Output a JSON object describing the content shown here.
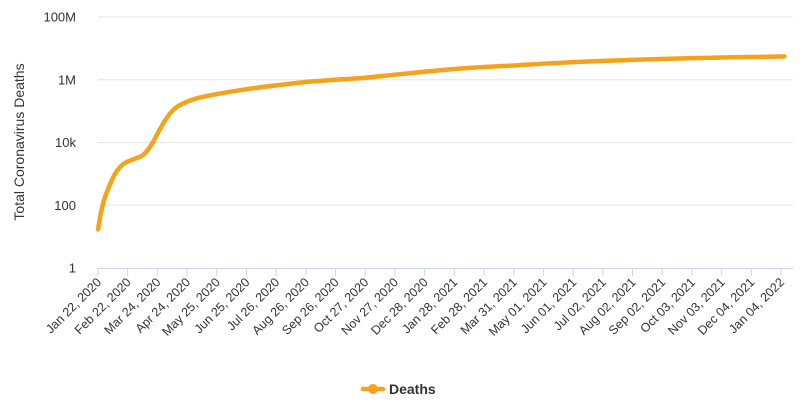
{
  "chart_data": {
    "type": "line",
    "ylabel": "Total Coronavirus Deaths",
    "yscale": "log",
    "ylim": [
      1,
      100000000
    ],
    "y_ticks": [
      {
        "value": 1,
        "label": "1"
      },
      {
        "value": 100,
        "label": "100"
      },
      {
        "value": 10000,
        "label": "10k"
      },
      {
        "value": 1000000,
        "label": "1M"
      },
      {
        "value": 100000000,
        "label": "100M"
      }
    ],
    "x_tick_labels": [
      "Jan 22, 2020",
      "Feb 22, 2020",
      "Mar 24, 2020",
      "Apr 24, 2020",
      "May 25, 2020",
      "Jun 25, 2020",
      "Jul 26, 2020",
      "Aug 26, 2020",
      "Sep 26, 2020",
      "Oct 27, 2020",
      "Nov 27, 2020",
      "Dec 28, 2020",
      "Jan 28, 2021",
      "Feb 28, 2021",
      "Mar 31, 2021",
      "May 01, 2021",
      "Jun 01, 2021",
      "Jul 02, 2021",
      "Aug 02, 2021",
      "Sep 02, 2021",
      "Oct 03, 2021",
      "Nov 03, 2021",
      "Dec 04, 2021",
      "Jan 04, 2022"
    ],
    "grid": true,
    "legend_position": "bottom-center",
    "series": [
      {
        "name": "Deaths",
        "color": "#f7a21b",
        "x": [
          "Jan 22, 2020",
          "Jan 25, 2020",
          "Jan 29, 2020",
          "Feb 03, 2020",
          "Feb 08, 2020",
          "Feb 13, 2020",
          "Feb 18, 2020",
          "Feb 22, 2020",
          "Mar 01, 2020",
          "Mar 08, 2020",
          "Mar 14, 2020",
          "Mar 20, 2020",
          "Mar 24, 2020",
          "Mar 31, 2020",
          "Apr 07, 2020",
          "Apr 14, 2020",
          "Apr 24, 2020",
          "May 05, 2020",
          "May 25, 2020",
          "Jun 25, 2020",
          "Jul 26, 2020",
          "Aug 26, 2020",
          "Sep 26, 2020",
          "Oct 27, 2020",
          "Nov 27, 2020",
          "Dec 28, 2020",
          "Jan 28, 2021",
          "Feb 28, 2021",
          "Mar 31, 2021",
          "May 01, 2021",
          "Jun 01, 2021",
          "Jul 02, 2021",
          "Aug 02, 2021",
          "Sep 02, 2021",
          "Oct 03, 2021",
          "Nov 03, 2021",
          "Dec 04, 2021",
          "Jan 04, 2022",
          "Jan 07, 2022"
        ],
        "values": [
          17,
          56,
          170,
          425,
          910,
          1520,
          2120,
          2460,
          3100,
          3800,
          5800,
          11000,
          19000,
          45000,
          90000,
          140000,
          200000,
          260000,
          350000,
          500000,
          660000,
          850000,
          1000000,
          1160000,
          1450000,
          1800000,
          2200000,
          2550000,
          2850000,
          3250000,
          3650000,
          4000000,
          4300000,
          4600000,
          4900000,
          5100000,
          5300000,
          5500000,
          5550000
        ]
      }
    ]
  }
}
